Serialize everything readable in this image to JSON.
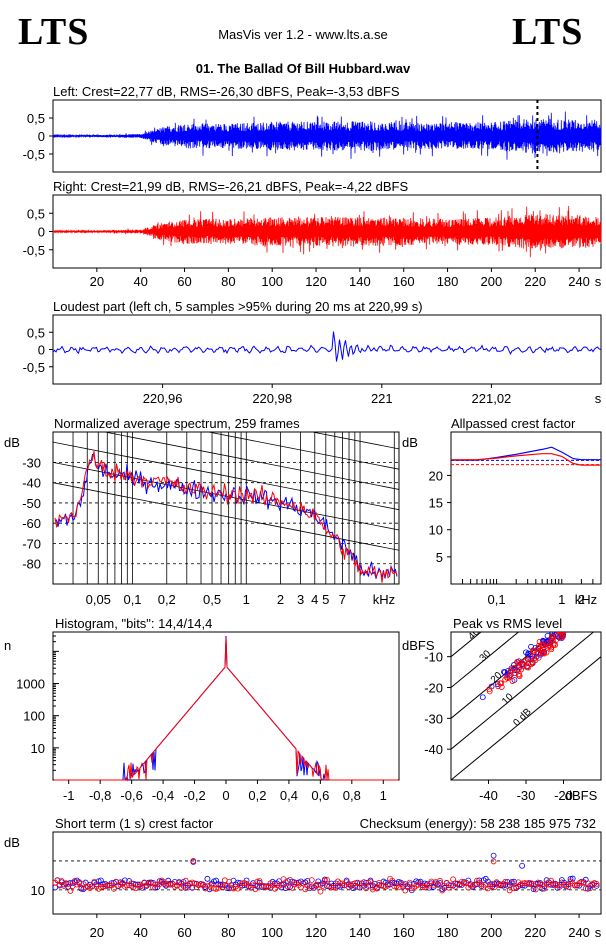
{
  "header": {
    "logo_left": "LTS",
    "logo_right": "LTS",
    "app_title": "MasVis ver 1.2 - www.lts.a.se",
    "file_title": "01. The Ballad Of Bill Hubbard.wav"
  },
  "colors": {
    "left": "#0000ff",
    "right": "#ff0000",
    "grid": "#000000"
  },
  "chart_data": [
    {
      "id": "left-waveform",
      "type": "line",
      "title": "Left: Crest=22,77 dB, RMS=-26,30 dBFS, Peak=-3,53 dBFS",
      "xlim": [
        0,
        250
      ],
      "ylim": [
        -1,
        1
      ],
      "yticks": [
        "0,5",
        "0",
        "-0,5"
      ],
      "ytick_values": [
        0.5,
        0,
        -0.5
      ],
      "marker_x": 220.99,
      "envelope": {
        "x": [
          0,
          20,
          40,
          50,
          60,
          80,
          100,
          120,
          140,
          160,
          180,
          200,
          220,
          240,
          250
        ],
        "amp": [
          0.02,
          0.03,
          0.06,
          0.25,
          0.35,
          0.35,
          0.4,
          0.4,
          0.42,
          0.38,
          0.35,
          0.38,
          0.5,
          0.45,
          0.45
        ]
      }
    },
    {
      "id": "right-waveform",
      "type": "line",
      "title": "Right: Crest=21,99 dB, RMS=-26,21 dBFS, Peak=-4,22 dBFS",
      "xlim": [
        0,
        250
      ],
      "ylim": [
        -1,
        1
      ],
      "yticks": [
        "0,5",
        "0",
        "-0,5"
      ],
      "ytick_values": [
        0.5,
        0,
        -0.5
      ],
      "xticks": [
        "20",
        "40",
        "60",
        "80",
        "100",
        "120",
        "140",
        "160",
        "180",
        "200",
        "220",
        "240"
      ],
      "xtick_values": [
        20,
        40,
        60,
        80,
        100,
        120,
        140,
        160,
        180,
        200,
        220,
        240
      ],
      "xunit": "s",
      "envelope": {
        "x": [
          0,
          20,
          40,
          50,
          60,
          80,
          100,
          120,
          140,
          160,
          180,
          200,
          220,
          240,
          250
        ],
        "amp": [
          0.02,
          0.03,
          0.06,
          0.25,
          0.35,
          0.35,
          0.4,
          0.4,
          0.42,
          0.38,
          0.35,
          0.38,
          0.5,
          0.45,
          0.45
        ]
      }
    },
    {
      "id": "loudest-part",
      "type": "line",
      "title": "Loudest part (left  ch, 5 samples >95% during 20 ms at 220,99 s)",
      "xlim": [
        220.94,
        221.04
      ],
      "ylim": [
        -1,
        1
      ],
      "yticks": [
        "0,5",
        "0",
        "-0,5"
      ],
      "ytick_values": [
        0.5,
        0,
        -0.5
      ],
      "xticks": [
        "220,96",
        "220,98",
        "221",
        "221,02"
      ],
      "xtick_values": [
        220.96,
        220.98,
        221.0,
        221.02
      ],
      "xunit": "s",
      "spike_x": 220.991
    },
    {
      "id": "average-spectrum",
      "type": "line",
      "title": "Normalized average spectrum, 259 frames",
      "ylabel": "dB",
      "xscale": "log",
      "xlim": [
        0.02,
        22
      ],
      "ylim": [
        -90,
        -15
      ],
      "yticks": [
        "-30",
        "-40",
        "-50",
        "-60",
        "-70",
        "-80"
      ],
      "ytick_values": [
        -30,
        -40,
        -50,
        -60,
        -70,
        -80
      ],
      "xticks": [
        "0,05",
        "0,1",
        "0,2",
        "0,5",
        "1",
        "2",
        "3",
        "4",
        "5",
        "7"
      ],
      "xtick_values": [
        0.05,
        0.1,
        0.2,
        0.5,
        1,
        2,
        3,
        4,
        5,
        7
      ],
      "xunit": "kHz",
      "series": [
        {
          "color": "blue",
          "x": [
            0.02,
            0.03,
            0.035,
            0.04,
            0.045,
            0.05,
            0.07,
            0.1,
            0.15,
            0.2,
            0.3,
            0.5,
            0.7,
            1,
            1.5,
            2,
            3,
            4,
            5,
            7,
            10,
            15,
            20
          ],
          "y": [
            -60,
            -57,
            -50,
            -35,
            -27,
            -33,
            -36,
            -38,
            -40,
            -41,
            -43,
            -45,
            -46,
            -46,
            -48,
            -50,
            -53,
            -56,
            -62,
            -70,
            -82,
            -86,
            -84
          ]
        },
        {
          "color": "red",
          "x": [
            0.02,
            0.03,
            0.035,
            0.04,
            0.045,
            0.05,
            0.07,
            0.1,
            0.15,
            0.2,
            0.3,
            0.5,
            0.7,
            1,
            1.5,
            2,
            3,
            4,
            5,
            7,
            10,
            15,
            20
          ],
          "y": [
            -59,
            -56,
            -48,
            -34,
            -26,
            -32,
            -35,
            -37,
            -39,
            -40,
            -43,
            -45,
            -45,
            -46,
            -48,
            -49,
            -52,
            -57,
            -63,
            -72,
            -83,
            -86,
            -85
          ]
        }
      ]
    },
    {
      "id": "allpassed-crest",
      "type": "line",
      "title": "Allpassed crest factor",
      "ylabel": "dB",
      "xscale": "log",
      "xlim": [
        0.02,
        4
      ],
      "ylim": [
        0,
        28
      ],
      "yticks": [
        "20",
        "15",
        "10",
        "5"
      ],
      "ytick_values": [
        20,
        15,
        10,
        5
      ],
      "xticks": [
        "0,1",
        "1",
        "2"
      ],
      "xtick_values": [
        0.1,
        1,
        2
      ],
      "xunit": "kHz",
      "series": [
        {
          "color": "blue",
          "x": [
            0.02,
            0.05,
            0.1,
            0.2,
            0.5,
            0.7,
            1,
            1.5,
            2,
            4
          ],
          "y": [
            22.8,
            22.8,
            23.3,
            23.9,
            24.8,
            25.2,
            24.3,
            23.1,
            22.9,
            22.9
          ]
        },
        {
          "color": "red",
          "x": [
            0.02,
            0.05,
            0.1,
            0.2,
            0.5,
            0.7,
            1,
            1.5,
            2,
            4
          ],
          "y": [
            22.9,
            22.9,
            23.2,
            23.6,
            24.0,
            24.0,
            23.5,
            22.2,
            21.9,
            21.9
          ]
        }
      ],
      "reference": [
        {
          "color": "blue",
          "y": 22.77
        },
        {
          "color": "red",
          "y": 21.99
        }
      ]
    },
    {
      "id": "histogram",
      "type": "line",
      "title": "Histogram, \"bits\": 14,4/14,4",
      "ylabel": "n",
      "yscale": "log",
      "xlim": [
        -1.1,
        1.1
      ],
      "ylim": [
        1,
        40000
      ],
      "yticks": [
        "1000",
        "100",
        "10"
      ],
      "ytick_values": [
        1000,
        100,
        10
      ],
      "xticks": [
        "-1",
        "-0,8",
        "-0,6",
        "-0,4",
        "-0,2",
        "0",
        "0,2",
        "0,4",
        "0,6",
        "0,8",
        "1"
      ],
      "xtick_values": [
        -1,
        -0.8,
        -0.6,
        -0.4,
        -0.2,
        0,
        0.2,
        0.4,
        0.6,
        0.8,
        1
      ],
      "peak": 3500,
      "extent": 0.65
    },
    {
      "id": "peak-vs-rms",
      "type": "scatter",
      "title": "Peak vs RMS level",
      "ylabel": "dBFS",
      "xlabel": "dBFS",
      "xlim": [
        -50,
        -10
      ],
      "ylim": [
        -50,
        -2
      ],
      "yticks": [
        "-10",
        "-20",
        "-30",
        "-40"
      ],
      "ytick_values": [
        -10,
        -20,
        -30,
        -40
      ],
      "xticks": [
        "-40",
        "-30",
        "-20"
      ],
      "xtick_values": [
        -40,
        -30,
        -20
      ],
      "crest_lines": [
        "40",
        "30",
        "20",
        "10",
        "0 dB"
      ],
      "crest_values": [
        40,
        30,
        20,
        10,
        0
      ],
      "clusters": [
        {
          "color": "blue",
          "rms_range": [
            -43,
            -20
          ],
          "crest_mean": 19,
          "crest_spread": 3,
          "count": 70
        },
        {
          "color": "red",
          "rms_range": [
            -43,
            -20
          ],
          "crest_mean": 18,
          "crest_spread": 3,
          "count": 80
        }
      ]
    },
    {
      "id": "short-term-crest",
      "type": "scatter",
      "title": "Short term (1 s) crest factor",
      "ylabel": "dB",
      "xlim": [
        0,
        250
      ],
      "ylim": [
        5,
        22
      ],
      "yticks": [
        "10"
      ],
      "ytick_values": [
        10
      ],
      "xticks": [
        "20",
        "40",
        "60",
        "80",
        "100",
        "120",
        "140",
        "160",
        "180",
        "200",
        "220",
        "240"
      ],
      "xtick_values": [
        20,
        40,
        60,
        80,
        100,
        120,
        140,
        160,
        180,
        200,
        220,
        240
      ],
      "xunit": "s",
      "dashed_levels": [
        16,
        10
      ],
      "series": [
        {
          "color": "blue",
          "mean": 11.2,
          "spread": 1.3,
          "count": 250,
          "outliers": [
            {
              "x": 201,
              "y": 17.1
            },
            {
              "x": 64,
              "y": 15.8
            },
            {
              "x": 214,
              "y": 15.0
            }
          ]
        },
        {
          "color": "red",
          "mean": 11.0,
          "spread": 1.3,
          "count": 250,
          "outliers": [
            {
              "x": 64,
              "y": 16.0
            },
            {
              "x": 201,
              "y": 15.9
            }
          ]
        }
      ]
    }
  ],
  "checksum": {
    "label": "Checksum (energy):",
    "value": "58 238 185 975 732"
  }
}
